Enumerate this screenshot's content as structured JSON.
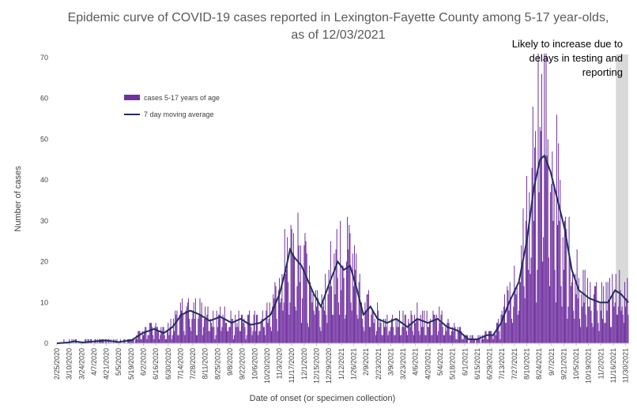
{
  "chart_data": {
    "type": "bar",
    "title": "Epidemic curve of COVID-19 cases reported in Lexington-Fayette County among 5-17 year-olds,",
    "subtitle": "as of 12/03/2021",
    "xlabel": "Date of onset (or specimen collection)",
    "ylabel": "Number of cases",
    "ylim": [
      0,
      70
    ],
    "yticks": [
      0,
      10,
      20,
      30,
      40,
      50,
      60,
      70
    ],
    "legend": {
      "placement": "upper-left",
      "entries": [
        "cases 5-17 years of age",
        "7 day moving average"
      ]
    },
    "annotation": {
      "lines": [
        "Likely to increase due to",
        "delays in testing and",
        "reporting"
      ],
      "shaded_from": "11/19/2021",
      "shaded_to": "12/03/2021"
    },
    "x_start": "2/25/2020",
    "x_end": "12/03/2021",
    "x_tick_labels": [
      "2/25/2020",
      "3/10/2020",
      "3/24/2020",
      "4/7/2020",
      "4/21/2020",
      "5/5/2020",
      "5/19/2020",
      "6/2/2020",
      "6/16/2020",
      "6/30/2020",
      "7/14/2020",
      "7/28/2020",
      "8/11/2020",
      "8/25/2020",
      "9/8/2020",
      "9/22/2020",
      "10/6/2020",
      "10/20/2020",
      "11/3/2020",
      "11/17/2020",
      "12/1/2020",
      "12/15/2020",
      "12/29/2020",
      "1/12/2021",
      "1/26/2021",
      "2/9/2021",
      "2/23/2021",
      "3/9/2021",
      "3/23/2021",
      "4/6/2021",
      "4/20/2021",
      "5/4/2021",
      "5/18/2021",
      "6/1/2021",
      "6/15/2021",
      "6/29/2021",
      "7/13/2021",
      "7/27/2021",
      "8/10/2021",
      "8/24/2021",
      "9/7/2021",
      "9/21/2021",
      "10/5/2021",
      "10/19/2021",
      "11/2/2021",
      "11/16/2021",
      "11/30/2021"
    ],
    "moving_average_anchors": [
      {
        "date": "2/25/2020",
        "value": 0
      },
      {
        "date": "3/9/2020",
        "value": 0.2
      },
      {
        "date": "3/16/2020",
        "value": 0.5
      },
      {
        "date": "3/25/2020",
        "value": 0.2
      },
      {
        "date": "4/10/2020",
        "value": 0.5
      },
      {
        "date": "4/20/2020",
        "value": 0.7
      },
      {
        "date": "5/5/2020",
        "value": 0.3
      },
      {
        "date": "5/20/2020",
        "value": 0.8
      },
      {
        "date": "6/1/2020",
        "value": 2.5
      },
      {
        "date": "6/14/2020",
        "value": 3.5
      },
      {
        "date": "6/25/2020",
        "value": 2.5
      },
      {
        "date": "7/5/2020",
        "value": 4
      },
      {
        "date": "7/15/2020",
        "value": 7
      },
      {
        "date": "7/25/2020",
        "value": 8
      },
      {
        "date": "8/5/2020",
        "value": 7
      },
      {
        "date": "8/16/2020",
        "value": 5.5
      },
      {
        "date": "8/28/2020",
        "value": 6.5
      },
      {
        "date": "9/10/2020",
        "value": 5
      },
      {
        "date": "9/20/2020",
        "value": 6
      },
      {
        "date": "10/1/2020",
        "value": 4.5
      },
      {
        "date": "10/12/2020",
        "value": 5
      },
      {
        "date": "10/24/2020",
        "value": 7
      },
      {
        "date": "11/3/2020",
        "value": 12
      },
      {
        "date": "11/10/2020",
        "value": 18
      },
      {
        "date": "11/15/2020",
        "value": 23
      },
      {
        "date": "11/20/2020",
        "value": 21
      },
      {
        "date": "11/28/2020",
        "value": 19
      },
      {
        "date": "12/4/2020",
        "value": 16
      },
      {
        "date": "12/12/2020",
        "value": 12
      },
      {
        "date": "12/20/2020",
        "value": 9
      },
      {
        "date": "12/30/2020",
        "value": 15
      },
      {
        "date": "1/8/2021",
        "value": 20
      },
      {
        "date": "1/15/2021",
        "value": 18
      },
      {
        "date": "1/22/2021",
        "value": 19
      },
      {
        "date": "1/30/2021",
        "value": 13
      },
      {
        "date": "2/6/2021",
        "value": 7
      },
      {
        "date": "2/14/2021",
        "value": 9
      },
      {
        "date": "2/22/2021",
        "value": 6
      },
      {
        "date": "3/5/2021",
        "value": 5
      },
      {
        "date": "3/15/2021",
        "value": 6
      },
      {
        "date": "3/28/2021",
        "value": 4
      },
      {
        "date": "4/8/2021",
        "value": 6
      },
      {
        "date": "4/20/2021",
        "value": 5
      },
      {
        "date": "5/1/2021",
        "value": 6
      },
      {
        "date": "5/12/2021",
        "value": 4
      },
      {
        "date": "5/25/2021",
        "value": 3
      },
      {
        "date": "6/5/2021",
        "value": 1
      },
      {
        "date": "6/15/2021",
        "value": 1
      },
      {
        "date": "6/26/2021",
        "value": 2
      },
      {
        "date": "7/3/2021",
        "value": 2
      },
      {
        "date": "7/12/2021",
        "value": 5
      },
      {
        "date": "7/21/2021",
        "value": 10
      },
      {
        "date": "8/1/2021",
        "value": 15
      },
      {
        "date": "8/10/2021",
        "value": 25
      },
      {
        "date": "8/18/2021",
        "value": 38
      },
      {
        "date": "8/25/2021",
        "value": 45
      },
      {
        "date": "8/30/2021",
        "value": 46
      },
      {
        "date": "9/6/2021",
        "value": 42
      },
      {
        "date": "9/14/2021",
        "value": 35
      },
      {
        "date": "9/22/2021",
        "value": 28
      },
      {
        "date": "9/30/2021",
        "value": 18
      },
      {
        "date": "10/8/2021",
        "value": 13
      },
      {
        "date": "10/20/2021",
        "value": 11
      },
      {
        "date": "11/1/2021",
        "value": 10
      },
      {
        "date": "11/10/2021",
        "value": 10
      },
      {
        "date": "11/18/2021",
        "value": 13
      },
      {
        "date": "11/25/2021",
        "value": 12
      },
      {
        "date": "12/3/2021",
        "value": 10
      }
    ],
    "colors": {
      "bars": "#7030a0",
      "moving_average": "#1f2d5e",
      "shade": "#d9d9d9",
      "axis": "#bfbfbf"
    }
  }
}
